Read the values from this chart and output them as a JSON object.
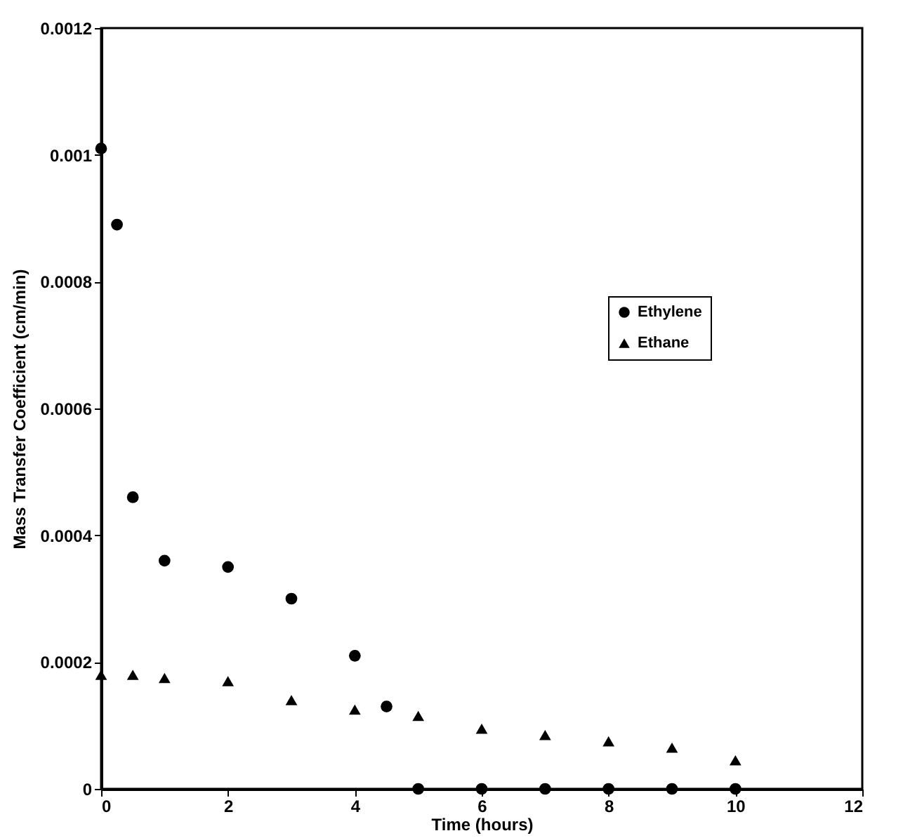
{
  "chart_data": {
    "type": "scatter",
    "xlabel": "Time  (hours)",
    "ylabel": "Mass Transfer Coefficient  (cm/min)",
    "xlim": [
      0,
      12
    ],
    "xticks": [
      0,
      2,
      4,
      6,
      8,
      10,
      12
    ],
    "ylim": [
      0,
      0.0012
    ],
    "yticks": [
      0,
      0.0002,
      0.0004,
      0.0006,
      0.0008,
      0.001,
      0.0012
    ],
    "grid": false,
    "legend": "right",
    "series": [
      {
        "name": "Ethylene",
        "color": "#000000",
        "marker": "circle",
        "x": [
          0,
          0.25,
          0.5,
          1,
          2,
          3,
          4,
          4.5,
          5,
          6,
          7,
          8,
          9,
          10
        ],
        "values": [
          0.00101,
          0.00089,
          0.00046,
          0.00036,
          0.00035,
          0.0003,
          0.00021,
          0.00013,
          0,
          0,
          0,
          0,
          0,
          0
        ]
      },
      {
        "name": "Ethane",
        "color": "#000000",
        "marker": "triangle",
        "x": [
          0,
          0.5,
          1,
          2,
          3,
          4,
          5,
          6,
          7,
          8,
          9,
          10
        ],
        "values": [
          0.00018,
          0.00018,
          0.000175,
          0.00017,
          0.00014,
          0.000125,
          0.000115,
          9.5e-05,
          8.5e-05,
          7.5e-05,
          6.5e-05,
          4.5e-05
        ]
      }
    ]
  }
}
